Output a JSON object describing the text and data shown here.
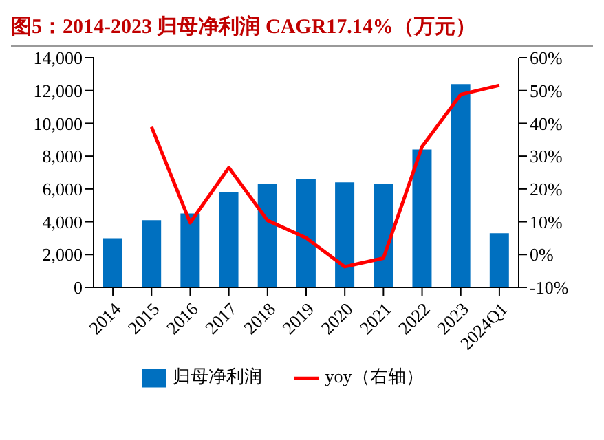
{
  "chart_data": {
    "type": "bar",
    "title": "图5：2014-2023 归母净利润 CAGR17.14%（万元）",
    "categories": [
      "2014",
      "2015",
      "2016",
      "2017",
      "2018",
      "2019",
      "2020",
      "2021",
      "2022",
      "2023",
      "2024Q1"
    ],
    "series": [
      {
        "name": "归母净利润",
        "color": "#0070c0",
        "values": [
          3000,
          4100,
          4500,
          5800,
          6300,
          6600,
          6400,
          6300,
          8400,
          12400,
          3300
        ]
      },
      {
        "name": "yoy（右轴）",
        "type": "line",
        "axis": "y2",
        "color": "#ff0000",
        "marker": "none",
        "values": [
          null,
          38.9,
          9.7,
          26.5,
          10.4,
          5.1,
          -3.7,
          -1.1,
          32.9,
          48.8,
          51.6
        ]
      }
    ],
    "ylim": [
      0,
      14000
    ],
    "yticks": [
      0,
      {
        "value": 2000,
        "label": "2,000"
      },
      {
        "value": 4000,
        "label": "4,000"
      },
      {
        "value": 6000,
        "label": "6,000"
      },
      {
        "value": 8000,
        "label": "8,000"
      },
      {
        "value": 10000,
        "label": "10,000"
      },
      {
        "value": 12000,
        "label": "12,000"
      },
      {
        "value": 14000,
        "label": "14,000"
      }
    ],
    "y2lim": [
      -10,
      60
    ],
    "y2ticks": [
      {
        "value": -10,
        "label": "-10%"
      },
      {
        "value": 0,
        "label": "0%"
      },
      {
        "value": 10,
        "label": "10%"
      },
      {
        "value": 20,
        "label": "20%"
      },
      {
        "value": 30,
        "label": "30%"
      },
      {
        "value": 40,
        "label": "40%"
      },
      {
        "value": 50,
        "label": "50%"
      },
      {
        "value": 60,
        "label": "60%"
      }
    ],
    "grid": false,
    "legend": "bottom"
  }
}
